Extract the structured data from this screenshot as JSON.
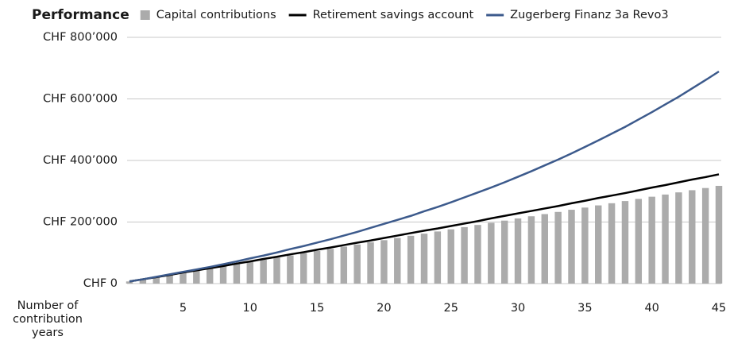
{
  "chart_data": {
    "type": "bar",
    "title": "Performance",
    "x_label": "Number of contribution years",
    "x": [
      1,
      2,
      3,
      4,
      5,
      6,
      7,
      8,
      9,
      10,
      11,
      12,
      13,
      14,
      15,
      16,
      17,
      18,
      19,
      20,
      21,
      22,
      23,
      24,
      25,
      26,
      27,
      28,
      29,
      30,
      31,
      32,
      33,
      34,
      35,
      36,
      37,
      38,
      39,
      40,
      41,
      42,
      43,
      44,
      45
    ],
    "xlim": [
      1,
      45
    ],
    "xticks": [
      5,
      10,
      15,
      20,
      25,
      30,
      35,
      40,
      45
    ],
    "ylim": [
      0,
      800000
    ],
    "yticks": [
      {
        "value": 0,
        "label": "CHF 0"
      },
      {
        "value": 200000,
        "label": "CHF 200’000"
      },
      {
        "value": 400000,
        "label": "CHF 400’000"
      },
      {
        "value": 600000,
        "label": "CHF 600’000"
      },
      {
        "value": 800000,
        "label": "CHF 800’000"
      }
    ],
    "grid": true,
    "legend": "top",
    "series": [
      {
        "name": "Capital contributions",
        "type": "bar",
        "color": "#ababab",
        "values": [
          7056,
          14112,
          21168,
          28224,
          35280,
          42336,
          49392,
          56448,
          63504,
          70560,
          77616,
          84672,
          91728,
          98784,
          105840,
          112896,
          119952,
          127008,
          134064,
          141120,
          148176,
          155232,
          162288,
          169344,
          176400,
          183456,
          190512,
          197568,
          204624,
          211680,
          218736,
          225792,
          232848,
          239904,
          246960,
          254016,
          261072,
          268128,
          275184,
          282240,
          289296,
          296352,
          303408,
          310464,
          317520
        ]
      },
      {
        "name": "Retirement savings account",
        "type": "line",
        "color": "#000000",
        "values": [
          7000,
          14000,
          21000,
          28000,
          36000,
          43000,
          50000,
          57000,
          65000,
          72000,
          80000,
          87000,
          95000,
          102000,
          110000,
          117000,
          125000,
          133000,
          140000,
          148000,
          156000,
          164000,
          172000,
          179000,
          187000,
          195000,
          203000,
          212000,
          220000,
          228000,
          236000,
          244000,
          252000,
          261000,
          269000,
          278000,
          286000,
          294000,
          303000,
          312000,
          320000,
          329000,
          338000,
          346000,
          355000
        ]
      },
      {
        "name": "Zugerberg Finanz 3a Revo3",
        "type": "line",
        "color": "#3c5a8c",
        "values": [
          7000,
          14000,
          22000,
          30000,
          38000,
          46000,
          54000,
          63000,
          72000,
          82000,
          91000,
          101000,
          112000,
          122000,
          133000,
          144000,
          156000,
          168000,
          181000,
          194000,
          207000,
          220000,
          235000,
          249000,
          264000,
          280000,
          296000,
          312000,
          329000,
          347000,
          365000,
          384000,
          403000,
          423000,
          444000,
          465000,
          487000,
          509000,
          533000,
          557000,
          582000,
          607000,
          634000,
          661000,
          689000
        ]
      }
    ]
  }
}
